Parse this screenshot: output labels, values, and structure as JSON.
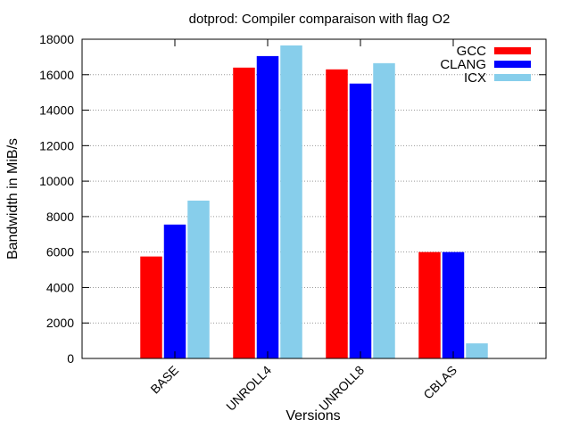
{
  "chart_data": {
    "type": "bar",
    "title": "dotprod: Compiler comparaison with flag O2",
    "xlabel": "Versions",
    "ylabel": "Bandwidth in MiB/s",
    "ylim": [
      0,
      18000
    ],
    "yticks": [
      0,
      2000,
      4000,
      6000,
      8000,
      10000,
      12000,
      14000,
      16000,
      18000
    ],
    "grid": true,
    "legend_position": "top-right",
    "categories": [
      "BASE",
      "UNROLL4",
      "UNROLL8",
      "CBLAS"
    ],
    "series": [
      {
        "name": "GCC",
        "color": "#ff0000",
        "values": [
          5750,
          16400,
          16300,
          6000
        ]
      },
      {
        "name": "CLANG",
        "color": "#0000ff",
        "values": [
          7550,
          17050,
          15500,
          6000
        ]
      },
      {
        "name": "ICX",
        "color": "#87ceeb",
        "values": [
          8900,
          17650,
          16650,
          850
        ]
      }
    ]
  }
}
